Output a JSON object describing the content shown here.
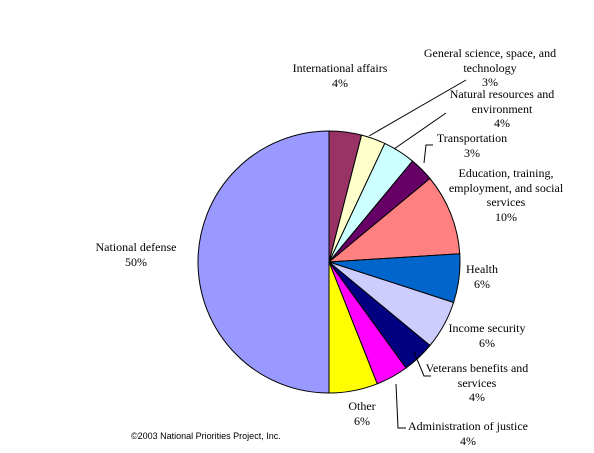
{
  "chart_data": {
    "type": "pie",
    "categories": [
      "International affairs",
      "General science, space, and technology",
      "Natural resources and environment",
      "Transportation",
      "Education, training, employment, and social services",
      "Health",
      "Income security",
      "Veterans benefits and services",
      "Administration of justice",
      "Other",
      "National defense"
    ],
    "values": [
      4,
      3,
      4,
      3,
      10,
      6,
      6,
      4,
      4,
      6,
      50
    ],
    "value_labels": [
      "4%",
      "3%",
      "4%",
      "3%",
      "10%",
      "6%",
      "6%",
      "4%",
      "4%",
      "6%",
      "50%"
    ],
    "colors": [
      "#993366",
      "#FFFFCC",
      "#CCFFFF",
      "#660066",
      "#FF8080",
      "#0066CC",
      "#CCCCFF",
      "#000080",
      "#FF00FF",
      "#FFFF00",
      "#9999FF"
    ],
    "footnote": "©2003 National Priorities Project, Inc."
  }
}
